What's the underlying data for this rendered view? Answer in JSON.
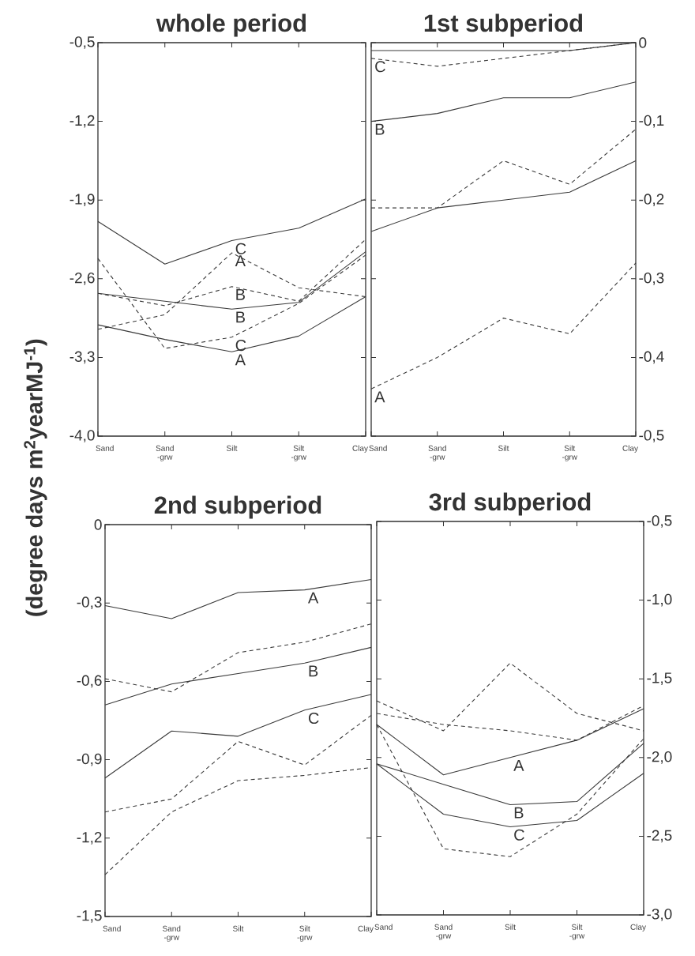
{
  "chart_data": [
    {
      "type": "line",
      "title": "whole period",
      "ylabel": "(degree days m$^{2}$yearMJ$^{-1}$)",
      "categories": [
        "Sand",
        "Sand -grw",
        "Silt",
        "Silt -grw",
        "Clay"
      ],
      "ylim": [
        -4.0,
        -0.5
      ],
      "yticks": [
        {
          "value": -0.5,
          "label": "-0,5"
        },
        {
          "value": -1.2,
          "label": "-1,2"
        },
        {
          "value": -1.9,
          "label": "-1,9"
        },
        {
          "value": -2.6,
          "label": "-2,6"
        },
        {
          "value": -3.3,
          "label": "-3,3"
        },
        {
          "value": -4.0,
          "label": "-4,0"
        }
      ],
      "series": [
        {
          "color": "#3a3a3a",
          "line_style": "solid",
          "values": [
            -3.01,
            -3.14,
            -3.25,
            -3.11,
            -2.76
          ]
        },
        {
          "color": "#3a3a3a",
          "line_style": "solid",
          "values": [
            -2.73,
            -2.8,
            -2.87,
            -2.81,
            -2.36
          ]
        },
        {
          "color": "#3a3a3a",
          "line_style": "solid",
          "values": [
            -2.09,
            -2.47,
            -2.26,
            -2.15,
            -1.89
          ]
        },
        {
          "color": "#3a3a3a",
          "line_style": "dashed",
          "values": [
            -3.05,
            -2.92,
            -2.37,
            -2.68,
            -2.76
          ]
        },
        {
          "color": "#3a3a3a",
          "line_style": "dashed",
          "values": [
            -2.73,
            -2.84,
            -2.67,
            -2.8,
            -2.25
          ]
        },
        {
          "color": "#3a3a3a",
          "line_style": "dashed",
          "values": [
            -2.42,
            -3.22,
            -3.12,
            -2.82,
            -2.39
          ]
        }
      ],
      "annotations": [
        {
          "text": "C",
          "x": "Silt",
          "y": -2.26
        },
        {
          "text": "A",
          "x": "Silt",
          "y": -2.37
        },
        {
          "text": "B",
          "x": "Silt",
          "y": -2.67
        },
        {
          "text": "B",
          "x": "Silt",
          "y": -2.87
        },
        {
          "text": "C",
          "x": "Silt",
          "y": -3.12
        },
        {
          "text": "A",
          "x": "Silt",
          "y": -3.25
        }
      ]
    },
    {
      "type": "line",
      "title": "1st subperiod",
      "categories": [
        "Sand",
        "Sand -grw",
        "Silt",
        "Silt -grw",
        "Clay"
      ],
      "ylim": [
        -0.5,
        0
      ],
      "yticks": [
        {
          "value": 0,
          "label": "0"
        },
        {
          "value": -0.1,
          "label": "-0,1"
        },
        {
          "value": -0.2,
          "label": "-0,2"
        },
        {
          "value": -0.3,
          "label": "-0,3"
        },
        {
          "value": -0.4,
          "label": "-0,4"
        },
        {
          "value": -0.5,
          "label": "-0,5"
        }
      ],
      "series": [
        {
          "color": "#3a3a3a",
          "line_style": "solid",
          "values": [
            -0.01,
            -0.01,
            -0.01,
            -0.01,
            0
          ]
        },
        {
          "color": "#3a3a3a",
          "line_style": "solid",
          "values": [
            -0.1,
            -0.09,
            -0.07,
            -0.07,
            -0.05
          ]
        },
        {
          "color": "#3a3a3a",
          "line_style": "solid",
          "values": [
            -0.24,
            -0.21,
            -0.2,
            -0.19,
            -0.15
          ]
        },
        {
          "color": "#3a3a3a",
          "line_style": "dashed",
          "values": [
            -0.02,
            -0.03,
            -0.02,
            -0.01,
            0
          ]
        },
        {
          "color": "#3a3a3a",
          "line_style": "dashed",
          "values": [
            -0.21,
            -0.21,
            -0.15,
            -0.18,
            -0.11
          ]
        },
        {
          "color": "#3a3a3a",
          "line_style": "dashed",
          "values": [
            -0.44,
            -0.4,
            -0.35,
            -0.37,
            -0.28
          ]
        }
      ],
      "annotations": [
        {
          "text": "C",
          "x": "Sand",
          "y": -0.02
        },
        {
          "text": "B",
          "x": "Sand",
          "y": -0.1
        },
        {
          "text": "A",
          "x": "Sand",
          "y": -0.44
        }
      ]
    },
    {
      "type": "line",
      "title": "2nd subperiod",
      "categories": [
        "Sand",
        "Sand -grw",
        "Silt",
        "Silt -grw",
        "Clay"
      ],
      "ylim": [
        -1.5,
        0
      ],
      "yticks": [
        {
          "value": 0,
          "label": "0"
        },
        {
          "value": -0.3,
          "label": "-0,3"
        },
        {
          "value": -0.6,
          "label": "-0,6"
        },
        {
          "value": -0.9,
          "label": "-0,9"
        },
        {
          "value": -1.2,
          "label": "-1,2"
        },
        {
          "value": -1.5,
          "label": "-1,5"
        }
      ],
      "series": [
        {
          "color": "#3a3a3a",
          "line_style": "solid",
          "values": [
            -0.31,
            -0.36,
            -0.26,
            -0.25,
            -0.21
          ]
        },
        {
          "color": "#3a3a3a",
          "line_style": "solid",
          "values": [
            -0.69,
            -0.61,
            -0.57,
            -0.53,
            -0.47
          ]
        },
        {
          "color": "#3a3a3a",
          "line_style": "solid",
          "values": [
            -0.97,
            -0.79,
            -0.81,
            -0.71,
            -0.65
          ]
        },
        {
          "color": "#3a3a3a",
          "line_style": "dashed",
          "values": [
            -0.59,
            -0.64,
            -0.49,
            -0.45,
            -0.38
          ]
        },
        {
          "color": "#3a3a3a",
          "line_style": "dashed",
          "values": [
            -1.1,
            -1.05,
            -0.83,
            -0.92,
            -0.73
          ]
        },
        {
          "color": "#3a3a3a",
          "line_style": "dashed",
          "values": [
            -1.34,
            -1.1,
            -0.98,
            -0.96,
            -0.93
          ]
        }
      ],
      "annotations": [
        {
          "text": "A",
          "x": "Silt -grw",
          "y": -0.25
        },
        {
          "text": "B",
          "x": "Silt -grw",
          "y": -0.53
        },
        {
          "text": "C",
          "x": "Silt -grw",
          "y": -0.71
        }
      ]
    },
    {
      "type": "line",
      "title": "3rd subperiod",
      "categories": [
        "Sand",
        "Sand -grw",
        "Silt",
        "Silt -grw",
        "Clay"
      ],
      "ylim": [
        -3.0,
        -0.5
      ],
      "yticks": [
        {
          "value": -0.5,
          "label": "-0,5"
        },
        {
          "value": -1.0,
          "label": "-1,0"
        },
        {
          "value": -1.5,
          "label": "-1,5"
        },
        {
          "value": -2.0,
          "label": "-2,0"
        },
        {
          "value": -2.5,
          "label": "-2,5"
        },
        {
          "value": -3.0,
          "label": "-3,0"
        }
      ],
      "series": [
        {
          "color": "#3a3a3a",
          "line_style": "solid",
          "values": [
            -1.79,
            -2.11,
            -2.0,
            -1.89,
            -1.69
          ]
        },
        {
          "color": "#3a3a3a",
          "line_style": "solid",
          "values": [
            -2.04,
            -2.17,
            -2.3,
            -2.28,
            -1.91
          ]
        },
        {
          "color": "#3a3a3a",
          "line_style": "solid",
          "values": [
            -2.04,
            -2.36,
            -2.44,
            -2.4,
            -2.1
          ]
        },
        {
          "color": "#3a3a3a",
          "line_style": "dashed",
          "values": [
            -1.64,
            -1.83,
            -1.4,
            -1.72,
            -1.83
          ]
        },
        {
          "color": "#3a3a3a",
          "line_style": "dashed",
          "values": [
            -1.72,
            -1.79,
            -1.83,
            -1.89,
            -1.67
          ]
        },
        {
          "color": "#3a3a3a",
          "line_style": "dashed",
          "values": [
            -1.79,
            -2.58,
            -2.63,
            -2.36,
            -1.88
          ]
        }
      ],
      "annotations": [
        {
          "text": "A",
          "x": "Silt",
          "y": -2.0
        },
        {
          "text": "B",
          "x": "Silt",
          "y": -2.3
        },
        {
          "text": "C",
          "x": "Silt",
          "y": -2.44
        }
      ]
    }
  ]
}
